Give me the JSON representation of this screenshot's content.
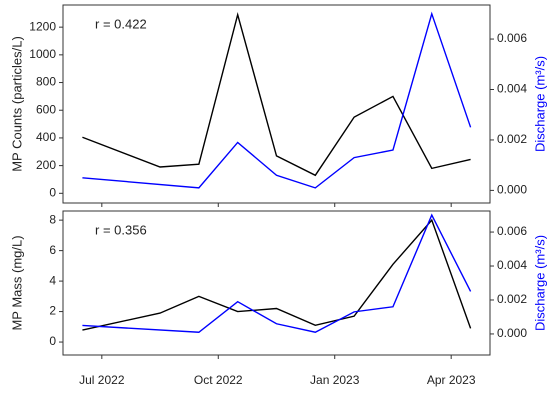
{
  "chart_data": [
    {
      "type": "line",
      "ylabel": "MP Counts (particles/L)",
      "y2label": "Discharge (m³/s)",
      "annotation": "r = 0.422",
      "xlim": [
        "2022-06",
        "2023-05"
      ],
      "xticks": [
        {
          "value": "2022-07",
          "label": "Jul 2022"
        },
        {
          "value": "2022-10",
          "label": "Oct 2022"
        },
        {
          "value": "2023-01",
          "label": "Jan 2023"
        },
        {
          "value": "2023-04",
          "label": "Apr 2023"
        }
      ],
      "ylim": [
        -70,
        1360
      ],
      "yticks": [
        0,
        200,
        400,
        600,
        800,
        1000,
        1200
      ],
      "y2lim": [
        -0.0005,
        0.00735
      ],
      "y2ticks": [
        {
          "value": 0,
          "label": "0.000"
        },
        {
          "value": 0.002,
          "label": "0.002"
        },
        {
          "value": 0.004,
          "label": "0.004"
        },
        {
          "value": 0.006,
          "label": "0.006"
        }
      ],
      "series": [
        {
          "color": "#000000",
          "x": [
            "2022-06",
            "2022-08",
            "2022-09",
            "2022-10",
            "2022-11",
            "2022-12",
            "2023-01",
            "2023-02",
            "2023-03",
            "2023-04"
          ],
          "values": [
            405,
            190,
            210,
            1290,
            270,
            130,
            550,
            700,
            180,
            245
          ]
        },
        {
          "color": "#0000ff",
          "axis": "y2",
          "x": [
            "2022-06",
            "2022-09",
            "2022-10",
            "2022-11",
            "2022-12",
            "2023-01",
            "2023-02",
            "2023-03",
            "2023-04"
          ],
          "values": [
            0.0005,
            0.0001,
            0.0019,
            0.0006,
            0.0001,
            0.0013,
            0.0016,
            0.007,
            0.0025
          ]
        }
      ]
    },
    {
      "type": "line",
      "ylabel": "MP Mass (mg/L)",
      "y2label": "Discharge (m³/s)",
      "annotation": "r = 0.356",
      "xlim": [
        "2022-06",
        "2023-05"
      ],
      "xticks": [
        {
          "value": "2022-07",
          "label": "Jul 2022"
        },
        {
          "value": "2022-10",
          "label": "Oct 2022"
        },
        {
          "value": "2023-01",
          "label": "Jan 2023"
        },
        {
          "value": "2023-04",
          "label": "Apr 2023"
        }
      ],
      "ylim": [
        -0.85,
        8.6
      ],
      "yticks": [
        0,
        2,
        4,
        6,
        8
      ],
      "y2lim": [
        -0.00124,
        0.00724
      ],
      "y2ticks": [
        {
          "value": 0,
          "label": "0.000"
        },
        {
          "value": 0.002,
          "label": "0.002"
        },
        {
          "value": 0.004,
          "label": "0.004"
        },
        {
          "value": 0.006,
          "label": "0.006"
        }
      ],
      "series": [
        {
          "color": "#000000",
          "x": [
            "2022-06",
            "2022-08",
            "2022-09",
            "2022-10",
            "2022-11",
            "2022-12",
            "2023-01",
            "2023-02",
            "2023-03",
            "2023-04"
          ],
          "values": [
            0.79,
            1.9,
            3.0,
            2.0,
            2.2,
            1.1,
            1.7,
            5.1,
            8.0,
            0.9
          ]
        },
        {
          "color": "#0000ff",
          "axis": "y2",
          "x": [
            "2022-06",
            "2022-09",
            "2022-10",
            "2022-11",
            "2022-12",
            "2023-01",
            "2023-02",
            "2023-03",
            "2023-04"
          ],
          "values": [
            0.0005,
            0.0001,
            0.0019,
            0.0006,
            0.0001,
            0.0013,
            0.0016,
            0.007,
            0.0025
          ]
        }
      ]
    }
  ]
}
